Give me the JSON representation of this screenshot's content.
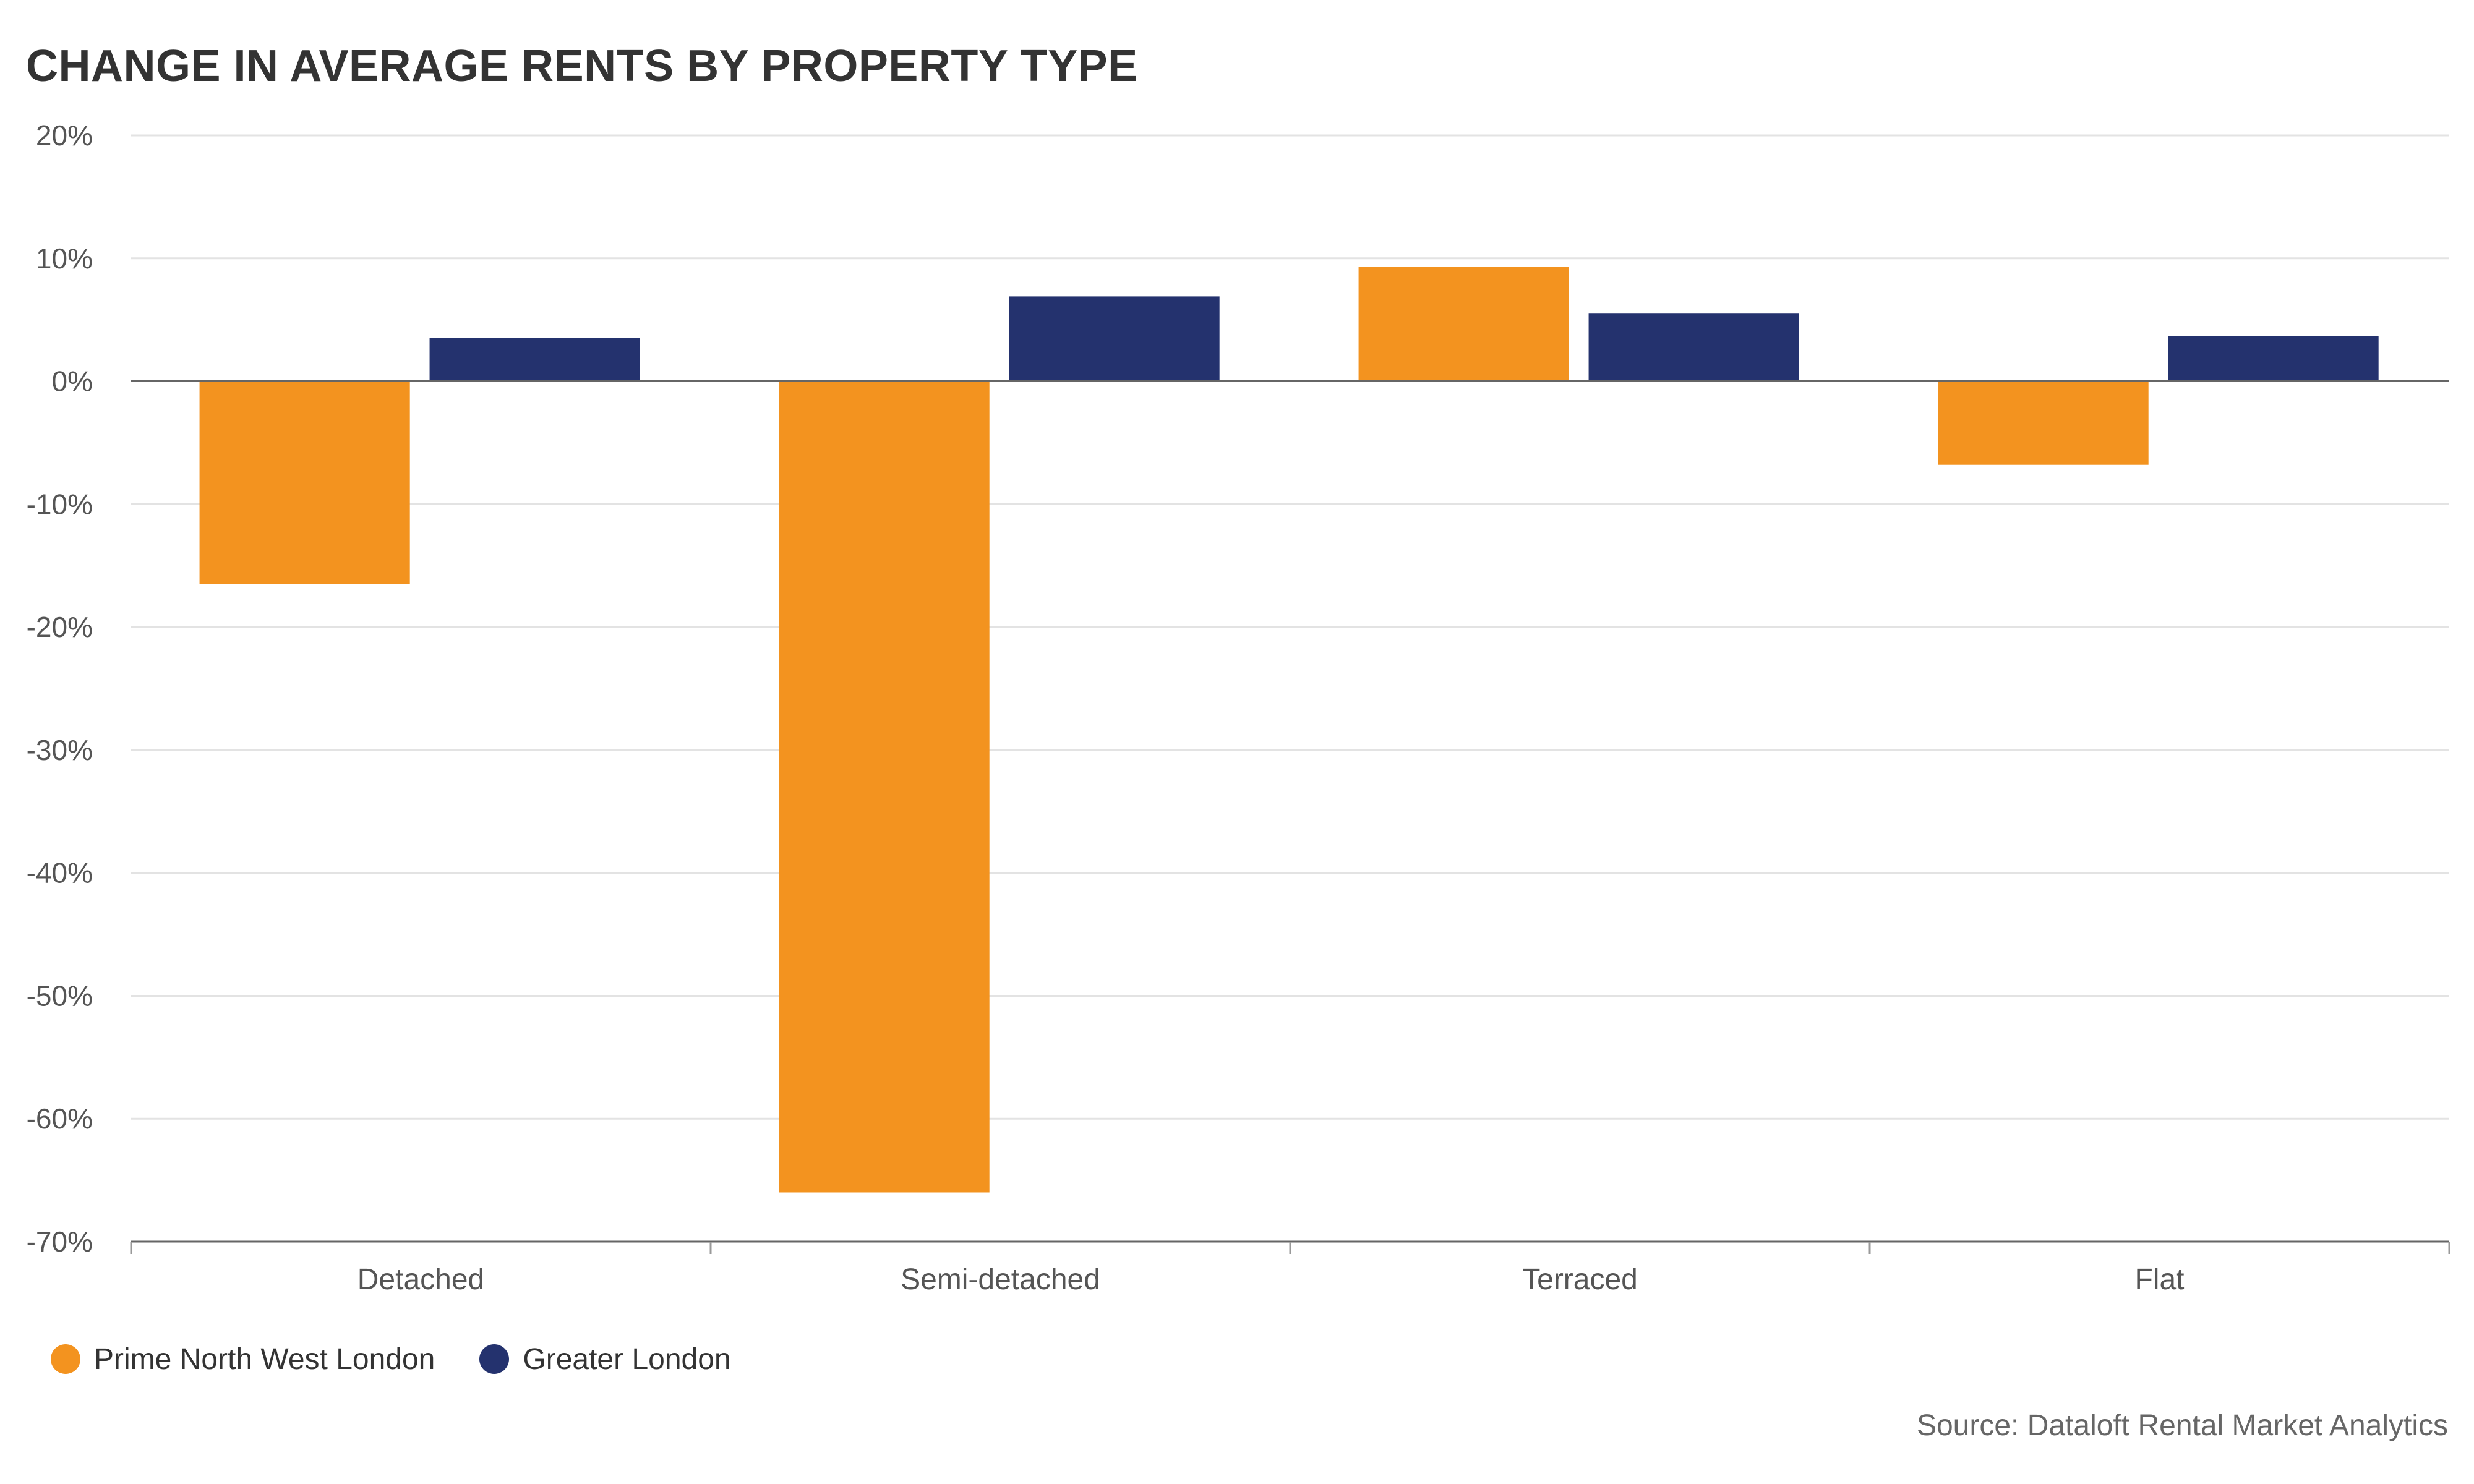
{
  "colors": {
    "prime": "#F3931F",
    "greater": "#24326E",
    "grid": "#E3E3E3",
    "axis": "#555555"
  },
  "chart_data": {
    "type": "bar",
    "title": "CHANGE IN AVERAGE RENTS BY PROPERTY TYPE",
    "categories": [
      "Detached",
      "Semi-detached",
      "Terraced",
      "Flat"
    ],
    "series": [
      {
        "name": "Prime North West London",
        "color": "#F3931F",
        "values": [
          -16.5,
          -66.0,
          9.3,
          -6.8
        ]
      },
      {
        "name": "Greater London",
        "color": "#24326E",
        "values": [
          3.5,
          6.9,
          5.5,
          3.7
        ]
      }
    ],
    "ylim": [
      -70,
      20
    ],
    "yticks": [
      20,
      10,
      0,
      -10,
      -20,
      -30,
      -40,
      -50,
      -60,
      -70
    ],
    "ytick_labels": [
      "20%",
      "10%",
      "0%",
      "-10%",
      "-20%",
      "-30%",
      "-40%",
      "-50%",
      "-60%",
      "-70%"
    ],
    "grid": true,
    "legend_position": "bottom-left",
    "source": "Source: Dataloft Rental Market Analytics"
  }
}
